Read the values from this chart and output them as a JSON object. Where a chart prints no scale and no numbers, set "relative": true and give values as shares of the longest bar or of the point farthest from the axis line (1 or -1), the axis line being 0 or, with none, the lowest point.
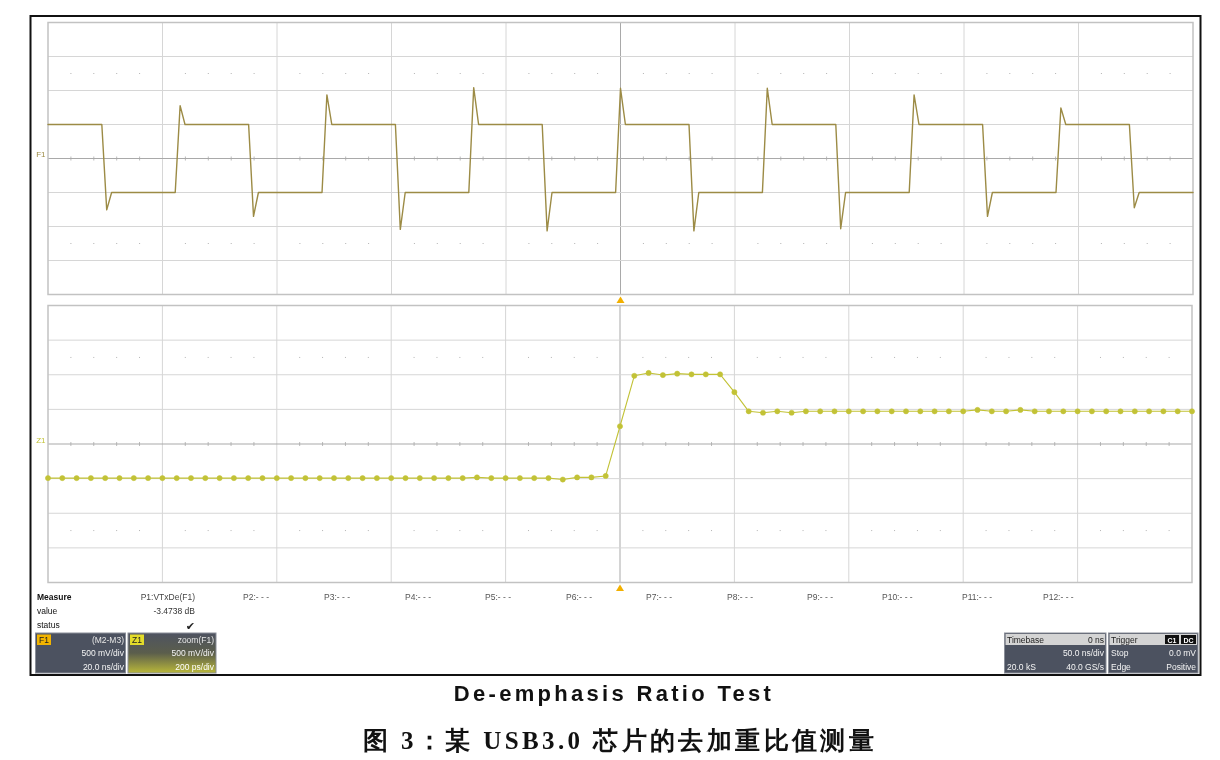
{
  "chart_data": [
    {
      "type": "line",
      "relative": true,
      "grid": true,
      "categories": [
        null,
        null,
        null,
        null,
        null,
        null,
        null,
        null,
        null,
        null,
        null,
        null,
        null,
        null,
        null,
        null,
        null,
        null,
        null,
        null,
        null,
        null,
        null,
        null,
        null,
        null,
        null,
        null,
        null,
        null,
        null,
        null,
        null,
        null,
        null,
        null,
        null,
        null,
        null,
        null,
        null,
        null,
        null,
        null,
        null,
        null,
        null,
        null,
        null,
        null,
        null,
        null,
        null,
        null,
        null,
        null,
        null,
        null,
        null,
        null,
        null,
        null,
        null,
        null,
        null,
        null,
        null,
        null,
        null,
        null,
        null,
        null,
        null,
        null,
        null,
        null,
        null,
        null,
        null,
        null,
        null,
        null,
        null,
        null,
        null,
        null,
        null,
        null,
        null,
        null,
        null,
        null,
        null,
        null,
        null,
        null,
        null,
        null,
        null,
        null,
        null,
        null,
        null,
        null,
        null,
        null,
        null,
        null,
        null,
        null,
        null,
        null,
        null,
        null,
        null,
        null,
        null,
        null,
        null,
        null,
        null,
        null,
        null,
        null,
        null,
        null,
        null,
        null,
        null,
        null,
        null,
        null,
        null,
        null,
        null,
        null,
        null,
        null,
        null,
        null,
        null,
        null,
        null,
        null,
        null,
        null,
        null,
        null,
        null,
        null,
        null,
        null,
        null,
        null,
        null,
        null,
        null,
        null,
        null,
        null,
        null,
        null,
        null,
        null,
        null,
        null,
        null,
        null,
        null,
        null,
        null,
        null,
        null,
        null,
        null,
        null,
        null,
        null,
        null,
        null,
        null,
        null,
        null,
        null,
        null,
        null,
        null,
        null,
        null,
        null,
        null,
        null,
        null,
        null,
        null,
        null,
        null,
        null,
        null,
        null,
        null,
        null,
        null,
        null,
        null,
        null,
        null,
        null,
        null,
        null,
        null,
        null,
        null,
        null,
        null,
        null,
        null,
        null,
        null,
        null,
        null,
        null,
        null,
        null,
        null,
        null,
        null,
        null,
        null,
        null,
        null,
        null,
        null,
        null,
        null
      ],
      "series": [
        {
          "name": "F1",
          "color": "#9c8b45",
          "values": [
            0.47,
            0.47,
            0.47,
            0.47,
            0.47,
            0.47,
            0.47,
            0.47,
            0.47,
            0.47,
            0.47,
            0.47,
            -0.71,
            -0.47,
            -0.47,
            -0.47,
            -0.47,
            -0.47,
            -0.47,
            -0.47,
            -0.47,
            -0.47,
            -0.47,
            -0.47,
            -0.47,
            -0.47,
            -0.47,
            0.73,
            0.47,
            0.47,
            0.47,
            0.47,
            0.47,
            0.47,
            0.47,
            0.47,
            0.47,
            0.47,
            0.47,
            0.47,
            0.47,
            0.47,
            -0.8,
            -0.47,
            -0.47,
            -0.47,
            -0.47,
            -0.47,
            -0.47,
            -0.47,
            -0.47,
            -0.47,
            -0.47,
            -0.47,
            -0.47,
            -0.47,
            -0.47,
            0.88,
            0.47,
            0.47,
            0.47,
            0.47,
            0.47,
            0.47,
            0.47,
            0.47,
            0.47,
            0.47,
            0.47,
            0.47,
            0.47,
            0.47,
            -0.98,
            -0.47,
            -0.47,
            -0.47,
            -0.47,
            -0.47,
            -0.47,
            -0.47,
            -0.47,
            -0.47,
            -0.47,
            -0.47,
            -0.47,
            -0.47,
            -0.47,
            0.98,
            0.47,
            0.47,
            0.47,
            0.47,
            0.47,
            0.47,
            0.47,
            0.47,
            0.47,
            0.47,
            0.47,
            0.47,
            0.47,
            0.47,
            -1,
            -0.47,
            -0.47,
            -0.47,
            -0.47,
            -0.47,
            -0.47,
            -0.47,
            -0.47,
            -0.47,
            -0.47,
            -0.47,
            -0.47,
            -0.47,
            -0.47,
            0.97,
            0.47,
            0.47,
            0.47,
            0.47,
            0.47,
            0.47,
            0.47,
            0.47,
            0.47,
            0.47,
            0.47,
            0.47,
            0.47,
            0.47,
            -1,
            -0.47,
            -0.47,
            -0.47,
            -0.47,
            -0.47,
            -0.47,
            -0.47,
            -0.47,
            -0.47,
            -0.47,
            -0.47,
            -0.47,
            -0.47,
            -0.47,
            0.97,
            0.47,
            0.47,
            0.47,
            0.47,
            0.47,
            0.47,
            0.47,
            0.47,
            0.47,
            0.47,
            0.47,
            0.47,
            0.47,
            0.47,
            -0.97,
            -0.47,
            -0.47,
            -0.47,
            -0.47,
            -0.47,
            -0.47,
            -0.47,
            -0.47,
            -0.47,
            -0.47,
            -0.47,
            -0.47,
            -0.47,
            -0.47,
            0.88,
            0.47,
            0.47,
            0.47,
            0.47,
            0.47,
            0.47,
            0.47,
            0.47,
            0.47,
            0.47,
            0.47,
            0.47,
            0.47,
            0.47,
            -0.8,
            -0.47,
            -0.47,
            -0.47,
            -0.47,
            -0.47,
            -0.47,
            -0.47,
            -0.47,
            -0.47,
            -0.47,
            -0.47,
            -0.47,
            -0.47,
            -0.47,
            0.7,
            0.47,
            0.47,
            0.47,
            0.47,
            0.47,
            0.47,
            0.47,
            0.47,
            0.47,
            0.47,
            0.47,
            0.47,
            0.47,
            0.47,
            -0.68,
            -0.47,
            -0.47,
            -0.47,
            -0.47,
            -0.47,
            -0.47,
            -0.47,
            -0.47,
            -0.47,
            -0.47,
            -0.47,
            -0.47
          ]
        }
      ]
    },
    {
      "type": "line",
      "relative": true,
      "grid": true,
      "marker": "circle",
      "categories": [
        null,
        null,
        null,
        null,
        null,
        null,
        null,
        null,
        null,
        null,
        null,
        null,
        null,
        null,
        null,
        null,
        null,
        null,
        null,
        null,
        null,
        null,
        null,
        null,
        null,
        null,
        null,
        null,
        null,
        null,
        null,
        null,
        null,
        null,
        null,
        null,
        null,
        null,
        null,
        null,
        null,
        null,
        null,
        null,
        null,
        null,
        null,
        null,
        null,
        null,
        null,
        null,
        null,
        null,
        null,
        null,
        null,
        null,
        null,
        null,
        null,
        null,
        null,
        null,
        null,
        null,
        null,
        null,
        null,
        null,
        null,
        null,
        null,
        null,
        null,
        null,
        null,
        null,
        null,
        null,
        null
      ],
      "series": [
        {
          "name": "Z1",
          "color": "#c2c236",
          "values": [
            -0.48,
            -0.48,
            -0.48,
            -0.48,
            -0.48,
            -0.48,
            -0.48,
            -0.48,
            -0.48,
            -0.48,
            -0.48,
            -0.48,
            -0.48,
            -0.48,
            -0.48,
            -0.48,
            -0.48,
            -0.48,
            -0.48,
            -0.48,
            -0.48,
            -0.48,
            -0.48,
            -0.48,
            -0.48,
            -0.48,
            -0.48,
            -0.48,
            -0.48,
            -0.48,
            -0.47,
            -0.48,
            -0.48,
            -0.48,
            -0.48,
            -0.48,
            -0.5,
            -0.47,
            -0.47,
            -0.45,
            0.25,
            0.96,
            1,
            0.97,
            0.99,
            0.98,
            0.98,
            0.98,
            0.73,
            0.46,
            0.44,
            0.46,
            0.44,
            0.46,
            0.46,
            0.46,
            0.46,
            0.46,
            0.46,
            0.46,
            0.46,
            0.46,
            0.46,
            0.46,
            0.46,
            0.48,
            0.46,
            0.46,
            0.48,
            0.46,
            0.46,
            0.46,
            0.46,
            0.46,
            0.46,
            0.46,
            0.46,
            0.46,
            0.46,
            0.46,
            0.46
          ]
        }
      ]
    },
    {
      "type": "other",
      "title": "De-emphasis Ratio Test",
      "annotations": [
        "Measure",
        "P1:VTxDe(F1)",
        "P2:- - -",
        "P3:- - -",
        "P4:- - -",
        "P5:- - -",
        "P6:- - -",
        "P7:- - -",
        "P8:- - -",
        "P9:- - -",
        "P10:- - -",
        "P11:- - -",
        "P12:- - -",
        "value",
        "-3.4738 dB",
        "status",
        "✔",
        "F1",
        "(M2-M3)",
        "500 mV/div",
        "20.0 ns/div",
        "Z1",
        "zoom(F1)",
        "500 mV/div",
        "200 ps/div",
        "Timebase",
        "0 ns",
        "50.0 ns/div",
        "20.0 kS",
        "40.0 GS/s",
        "Trigger",
        "C1",
        "DC",
        "Stop",
        "0.0 mV",
        "Edge",
        "Positive",
        "图 3：某 USB3.0 芯片的去加重比值测量"
      ]
    }
  ]
}
